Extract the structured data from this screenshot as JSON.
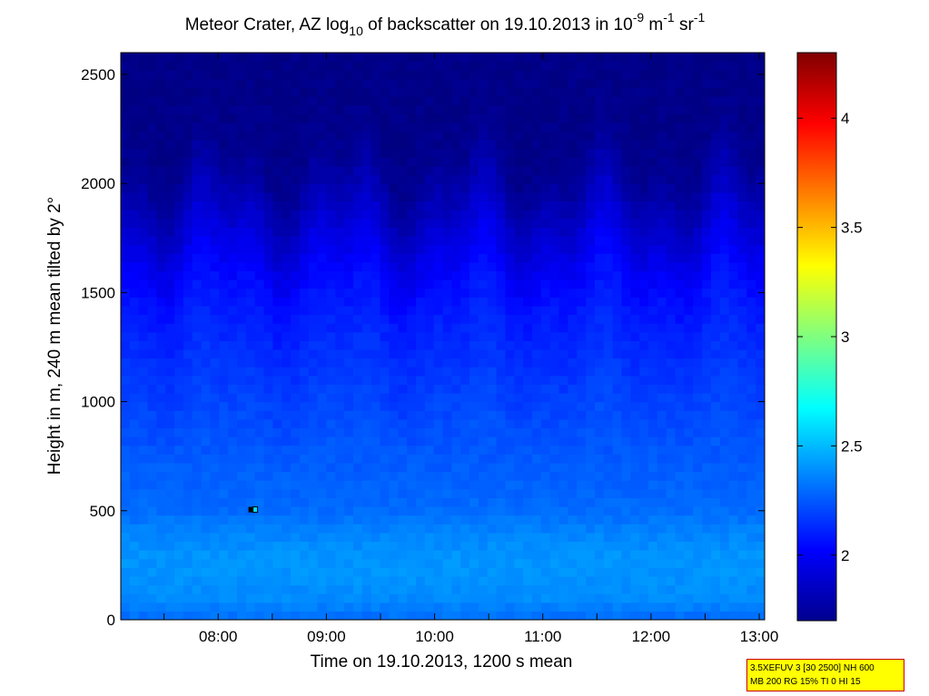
{
  "chart_data": {
    "type": "heatmap",
    "title": {
      "prefix": "Meteor Crater, AZ log",
      "prefix_sub": "10",
      "middle": " of backscatter on 19.10.2013 in 10",
      "sup1": "-9",
      "unit1": " m",
      "sup2": "-1",
      "unit2": " sr",
      "sup3": "-1"
    },
    "xlabel": "Time on 19.10.2013, 1200 s mean",
    "ylabel": "Height in m, 240 m mean tilted by 2°",
    "x_ticks": [
      "08:00",
      "09:00",
      "10:00",
      "11:00",
      "12:00",
      "13:00"
    ],
    "x_tick_hours": [
      8,
      9,
      10,
      11,
      12,
      13
    ],
    "xlim_hours": [
      7.1,
      13.05
    ],
    "y_ticks": [
      0,
      500,
      1000,
      1500,
      2000,
      2500
    ],
    "ylim": [
      0,
      2600
    ],
    "colorbar": {
      "ticks": [
        2,
        2.5,
        3,
        3.5,
        4
      ],
      "tick_labels": [
        "2",
        "2.5",
        "3",
        "3.5",
        "4"
      ],
      "range": [
        1.7,
        4.3
      ],
      "colormap": "jet"
    },
    "value_profile": {
      "heights": [
        0,
        100,
        200,
        300,
        400,
        500,
        700,
        900,
        1100,
        1300,
        1500,
        1700,
        1900,
        2100,
        2300,
        2600
      ],
      "values": [
        2.3,
        2.38,
        2.4,
        2.4,
        2.36,
        2.3,
        2.26,
        2.22,
        2.17,
        2.12,
        2.06,
        1.96,
        1.84,
        1.74,
        1.72,
        1.72
      ]
    },
    "marker": {
      "time_hours": 8.33,
      "height": 505,
      "value": 2.6
    }
  },
  "info_box": {
    "line1": "3.5XEFUV 3 [30 2500] NH 600",
    "line2": "MB 200 RG 15% TI 0 HI 15",
    "bg_color": "#ffff00",
    "border_color": "#cc0000"
  }
}
